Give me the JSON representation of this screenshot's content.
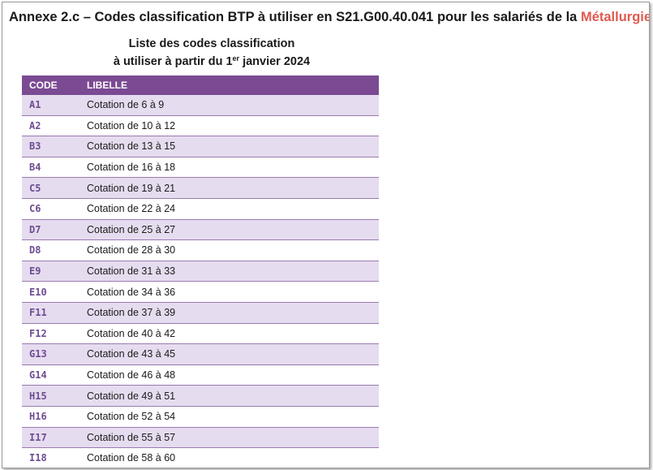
{
  "heading": {
    "prefix": "Annexe 2.c – Codes classification BTP à utiliser en S21.G00.40.041 pour les salariés de la ",
    "highlight": "Métallurgie"
  },
  "subtitle": {
    "line1": "Liste des codes classification",
    "line2_start": "à utiliser à partir du 1",
    "line2_sup": "er",
    "line2_end": " janvier 2024"
  },
  "table": {
    "headers": [
      "CODE",
      "LIBELLE"
    ],
    "rows": [
      {
        "code": "A1",
        "libelle": "Cotation de 6 à 9"
      },
      {
        "code": "A2",
        "libelle": "Cotation de 10 à 12"
      },
      {
        "code": "B3",
        "libelle": "Cotation de 13 à 15"
      },
      {
        "code": "B4",
        "libelle": "Cotation de 16 à 18"
      },
      {
        "code": "C5",
        "libelle": "Cotation de 19 à 21"
      },
      {
        "code": "C6",
        "libelle": "Cotation de 22 à 24"
      },
      {
        "code": "D7",
        "libelle": "Cotation de 25 à 27"
      },
      {
        "code": "D8",
        "libelle": "Cotation de 28 à 30"
      },
      {
        "code": "E9",
        "libelle": "Cotation de 31 à 33"
      },
      {
        "code": "E10",
        "libelle": "Cotation de 34 à 36"
      },
      {
        "code": "F11",
        "libelle": "Cotation de 37 à 39"
      },
      {
        "code": "F12",
        "libelle": "Cotation de 40 à 42"
      },
      {
        "code": "G13",
        "libelle": "Cotation de 43 à 45"
      },
      {
        "code": "G14",
        "libelle": "Cotation de 46 à 48"
      },
      {
        "code": "H15",
        "libelle": "Cotation de 49 à 51"
      },
      {
        "code": "H16",
        "libelle": "Cotation de 52 à 54"
      },
      {
        "code": "I17",
        "libelle": "Cotation de 55 à 57"
      },
      {
        "code": "I18",
        "libelle": "Cotation de 58 à 60"
      }
    ]
  },
  "colors": {
    "header_bg": "#7b4a93",
    "row_stripe": "#e6dcef",
    "code_text": "#6e4d93",
    "highlight": "#e05a4f"
  }
}
